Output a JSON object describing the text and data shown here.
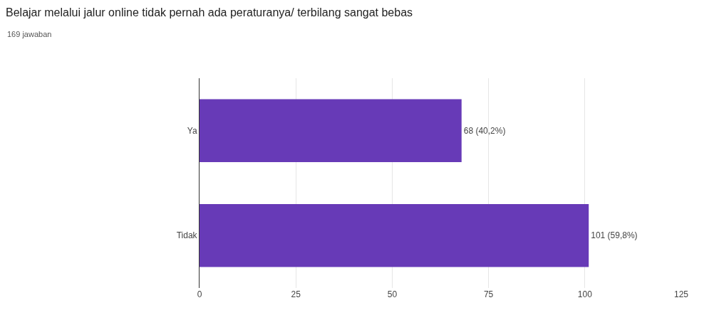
{
  "chart_data": {
    "type": "bar",
    "orientation": "horizontal",
    "title": "Belajar melalui jalur online tidak pernah ada peraturanya/ terbilang sangat bebas",
    "subtitle": "169 jawaban",
    "categories": [
      "Ya",
      "Tidak"
    ],
    "values": [
      68,
      101
    ],
    "value_labels": [
      "68 (40,2%)",
      "101 (59,8%)"
    ],
    "color": "#673ab7",
    "xlim": [
      0,
      125
    ],
    "xticks": [
      0,
      25,
      50,
      75,
      100,
      125
    ],
    "grid": "x"
  }
}
